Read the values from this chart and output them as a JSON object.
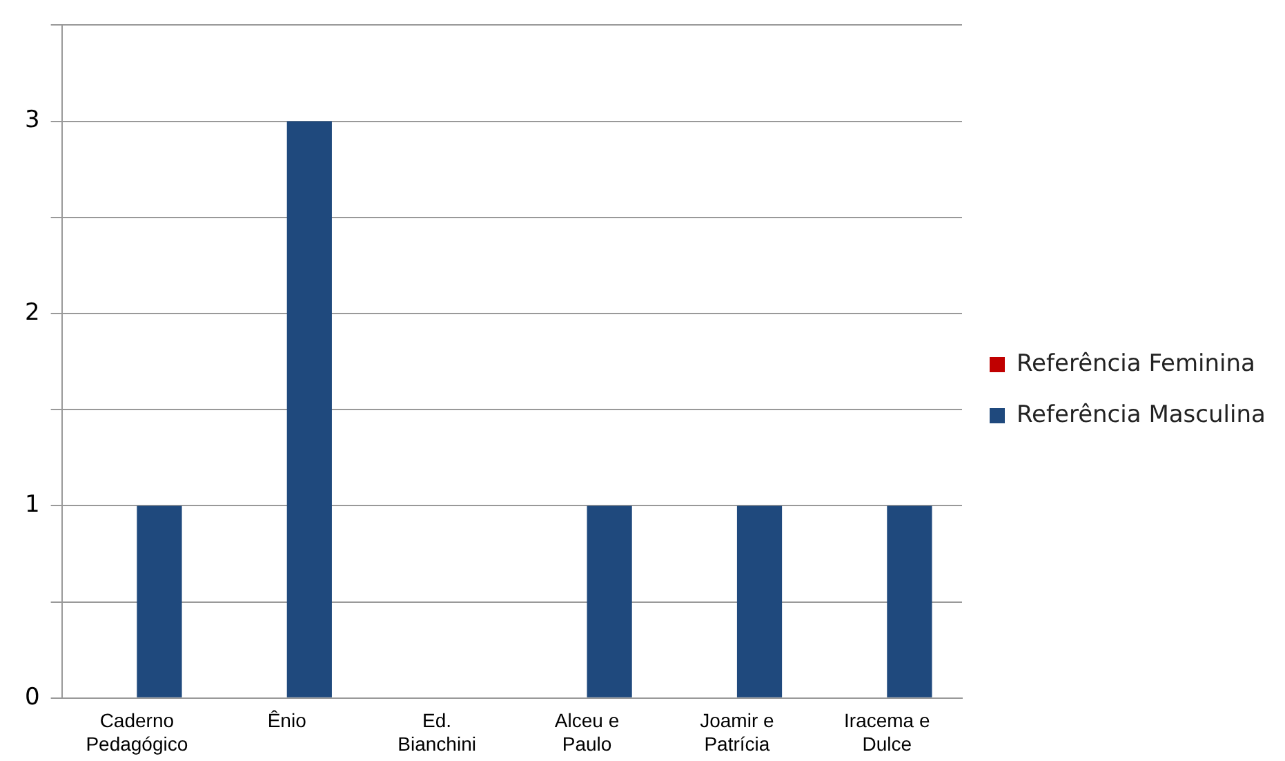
{
  "chart_data": {
    "type": "bar",
    "categories": [
      "Caderno Pedagógico",
      "Ênio",
      "Ed. Bianchini",
      "Alceu e Paulo",
      "Joamir e Patrícia",
      "Iracema e Dulce"
    ],
    "series": [
      {
        "name": "Referência Feminina",
        "color": "#c00000",
        "values": [
          0,
          0,
          0,
          0,
          0,
          0
        ]
      },
      {
        "name": "Referência Masculina",
        "color": "#1f497d",
        "values": [
          1,
          3,
          0,
          1,
          1,
          1
        ]
      }
    ],
    "ylim": [
      0,
      3.5
    ],
    "yticks": [
      0,
      {
        "value": 0.5,
        "label": null
      },
      1,
      {
        "value": 1.5,
        "label": null
      },
      2,
      {
        "value": 2.5,
        "label": null
      },
      3,
      {
        "value": 3.5,
        "label": null
      }
    ],
    "grid": "y",
    "legend": "right"
  }
}
